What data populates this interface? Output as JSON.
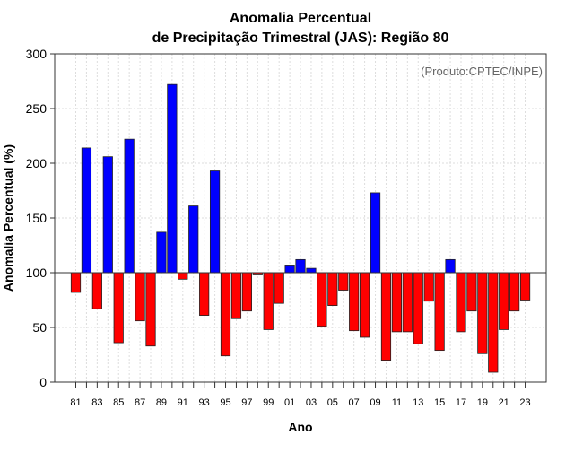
{
  "chart_data": {
    "type": "bar",
    "title": [
      "Anomalia Percentual",
      "de Precipitação Trimestral (JAS): Região 80"
    ],
    "annotation": "(Produto:CPTEC/INPE)",
    "xlabel": "Ano",
    "ylabel": "Anomalia Percentual (%)",
    "ylim": [
      0,
      300
    ],
    "yticks": [
      0,
      50,
      100,
      150,
      200,
      250,
      300
    ],
    "baseline": 100,
    "grid": true,
    "colors": {
      "above": "#0000ff",
      "below": "#ff0000"
    },
    "years": [
      1981,
      1982,
      1983,
      1984,
      1985,
      1986,
      1987,
      1988,
      1989,
      1990,
      1991,
      1992,
      1993,
      1994,
      1995,
      1996,
      1997,
      1998,
      1999,
      2000,
      2001,
      2002,
      2003,
      2004,
      2005,
      2006,
      2007,
      2008,
      2009,
      2010,
      2011,
      2012,
      2013,
      2014,
      2015,
      2016,
      2017,
      2018,
      2019,
      2020,
      2021,
      2022,
      2023
    ],
    "xtick_labels": [
      "81",
      "83",
      "85",
      "87",
      "89",
      "91",
      "93",
      "95",
      "97",
      "99",
      "01",
      "03",
      "05",
      "07",
      "09",
      "11",
      "13",
      "15",
      "17",
      "19",
      "21",
      "23"
    ],
    "values": [
      82,
      214,
      67,
      206,
      36,
      222,
      56,
      33,
      137,
      272,
      94,
      161,
      61,
      193,
      24,
      58,
      65,
      98,
      48,
      72,
      107,
      112,
      104,
      51,
      70,
      84,
      47,
      41,
      173,
      20,
      46,
      46,
      35,
      74,
      29,
      112,
      46,
      65,
      26,
      9,
      48,
      65,
      75
    ]
  }
}
